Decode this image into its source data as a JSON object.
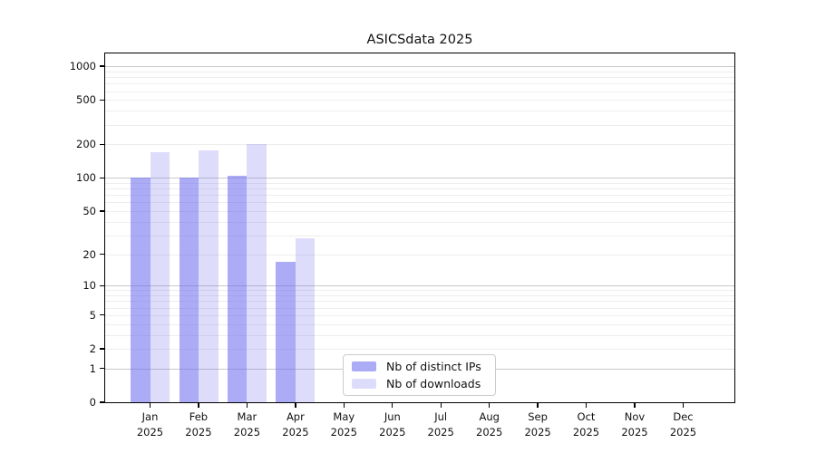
{
  "chart_data": {
    "type": "bar",
    "title": "ASICSdata 2025",
    "categories": [
      {
        "month": "Jan",
        "year": "2025"
      },
      {
        "month": "Feb",
        "year": "2025"
      },
      {
        "month": "Mar",
        "year": "2025"
      },
      {
        "month": "Apr",
        "year": "2025"
      },
      {
        "month": "May",
        "year": "2025"
      },
      {
        "month": "Jun",
        "year": "2025"
      },
      {
        "month": "Jul",
        "year": "2025"
      },
      {
        "month": "Aug",
        "year": "2025"
      },
      {
        "month": "Sep",
        "year": "2025"
      },
      {
        "month": "Oct",
        "year": "2025"
      },
      {
        "month": "Nov",
        "year": "2025"
      },
      {
        "month": "Dec",
        "year": "2025"
      }
    ],
    "series": [
      {
        "name": "Nb of distinct IPs",
        "color": "rgba(102,102,238,0.55)",
        "values": [
          100,
          100,
          105,
          17,
          null,
          null,
          null,
          null,
          null,
          null,
          null,
          null
        ]
      },
      {
        "name": "Nb of downloads",
        "color": "rgba(102,102,238,0.22)",
        "values": [
          170,
          175,
          200,
          28,
          null,
          null,
          null,
          null,
          null,
          null,
          null,
          null
        ]
      }
    ],
    "y_ticks": [
      0,
      1,
      2,
      5,
      10,
      20,
      50,
      100,
      200,
      500,
      1000
    ],
    "y_scale": "log10(1+x)",
    "ylim": [
      0,
      1300
    ],
    "xlabel": "",
    "ylabel": "",
    "grid": "horizontal log gridlines, major at powers of 10, minor in between",
    "legend_position": "lower center"
  },
  "colors": {
    "bar_base": "#6666ee",
    "major_grid": "#c9c9c9",
    "minor_grid": "#ededed",
    "axis": "#000000",
    "legend_border": "#cccccc",
    "background": "#ffffff"
  }
}
